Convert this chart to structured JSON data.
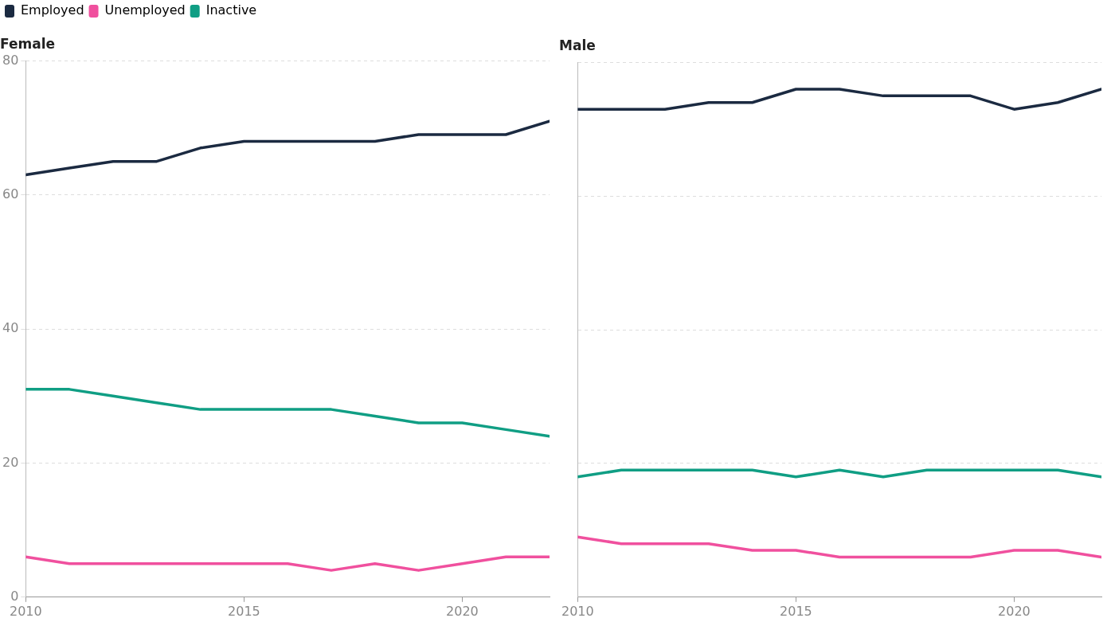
{
  "chart_data": [
    {
      "type": "line",
      "title": "Female",
      "x": [
        2010,
        2011,
        2012,
        2013,
        2014,
        2015,
        2016,
        2017,
        2018,
        2019,
        2020,
        2021,
        2022
      ],
      "xlim": [
        2010,
        2022
      ],
      "xticks": [
        2010,
        2015,
        2020
      ],
      "ylim": [
        0,
        80
      ],
      "yticks": [
        0,
        20,
        40,
        60,
        80
      ],
      "grid": "y",
      "legend": "top left",
      "marker": "none",
      "line_style": "solid",
      "series": [
        {
          "name": "Employed",
          "color": "#1b2a41",
          "values": [
            63,
            64,
            65,
            65,
            67,
            68,
            68,
            68,
            68,
            69,
            69,
            69,
            71
          ]
        },
        {
          "name": "Unemployed",
          "color": "#f0509e",
          "values": [
            6,
            5,
            5,
            5,
            5,
            5,
            5,
            4,
            5,
            4,
            5,
            6,
            6
          ]
        },
        {
          "name": "Inactive",
          "color": "#109e84",
          "values": [
            31,
            31,
            30,
            29,
            28,
            28,
            28,
            28,
            27,
            26,
            26,
            25,
            24
          ]
        }
      ]
    },
    {
      "type": "line",
      "title": "Male",
      "x": [
        2010,
        2011,
        2012,
        2013,
        2014,
        2015,
        2016,
        2017,
        2018,
        2019,
        2020,
        2021,
        2022
      ],
      "xlim": [
        2010,
        2022
      ],
      "xticks": [
        2010,
        2015,
        2020
      ],
      "ylim": [
        0,
        80
      ],
      "yticks": [
        0,
        20,
        40,
        60,
        80
      ],
      "grid": "y",
      "tick_labels": "x",
      "marker": "none",
      "line_style": "solid",
      "series": [
        {
          "color": "#1b2a41",
          "values": [
            73,
            73,
            73,
            74,
            74,
            76,
            76,
            75,
            75,
            75,
            73,
            74,
            76
          ]
        },
        {
          "color": "#f0509e",
          "values": [
            9,
            8,
            8,
            8,
            7,
            7,
            6,
            6,
            6,
            6,
            7,
            7,
            6
          ]
        },
        {
          "color": "#109e84",
          "values": [
            18,
            19,
            19,
            19,
            19,
            18,
            19,
            18,
            19,
            19,
            19,
            19,
            18
          ]
        }
      ]
    }
  ]
}
